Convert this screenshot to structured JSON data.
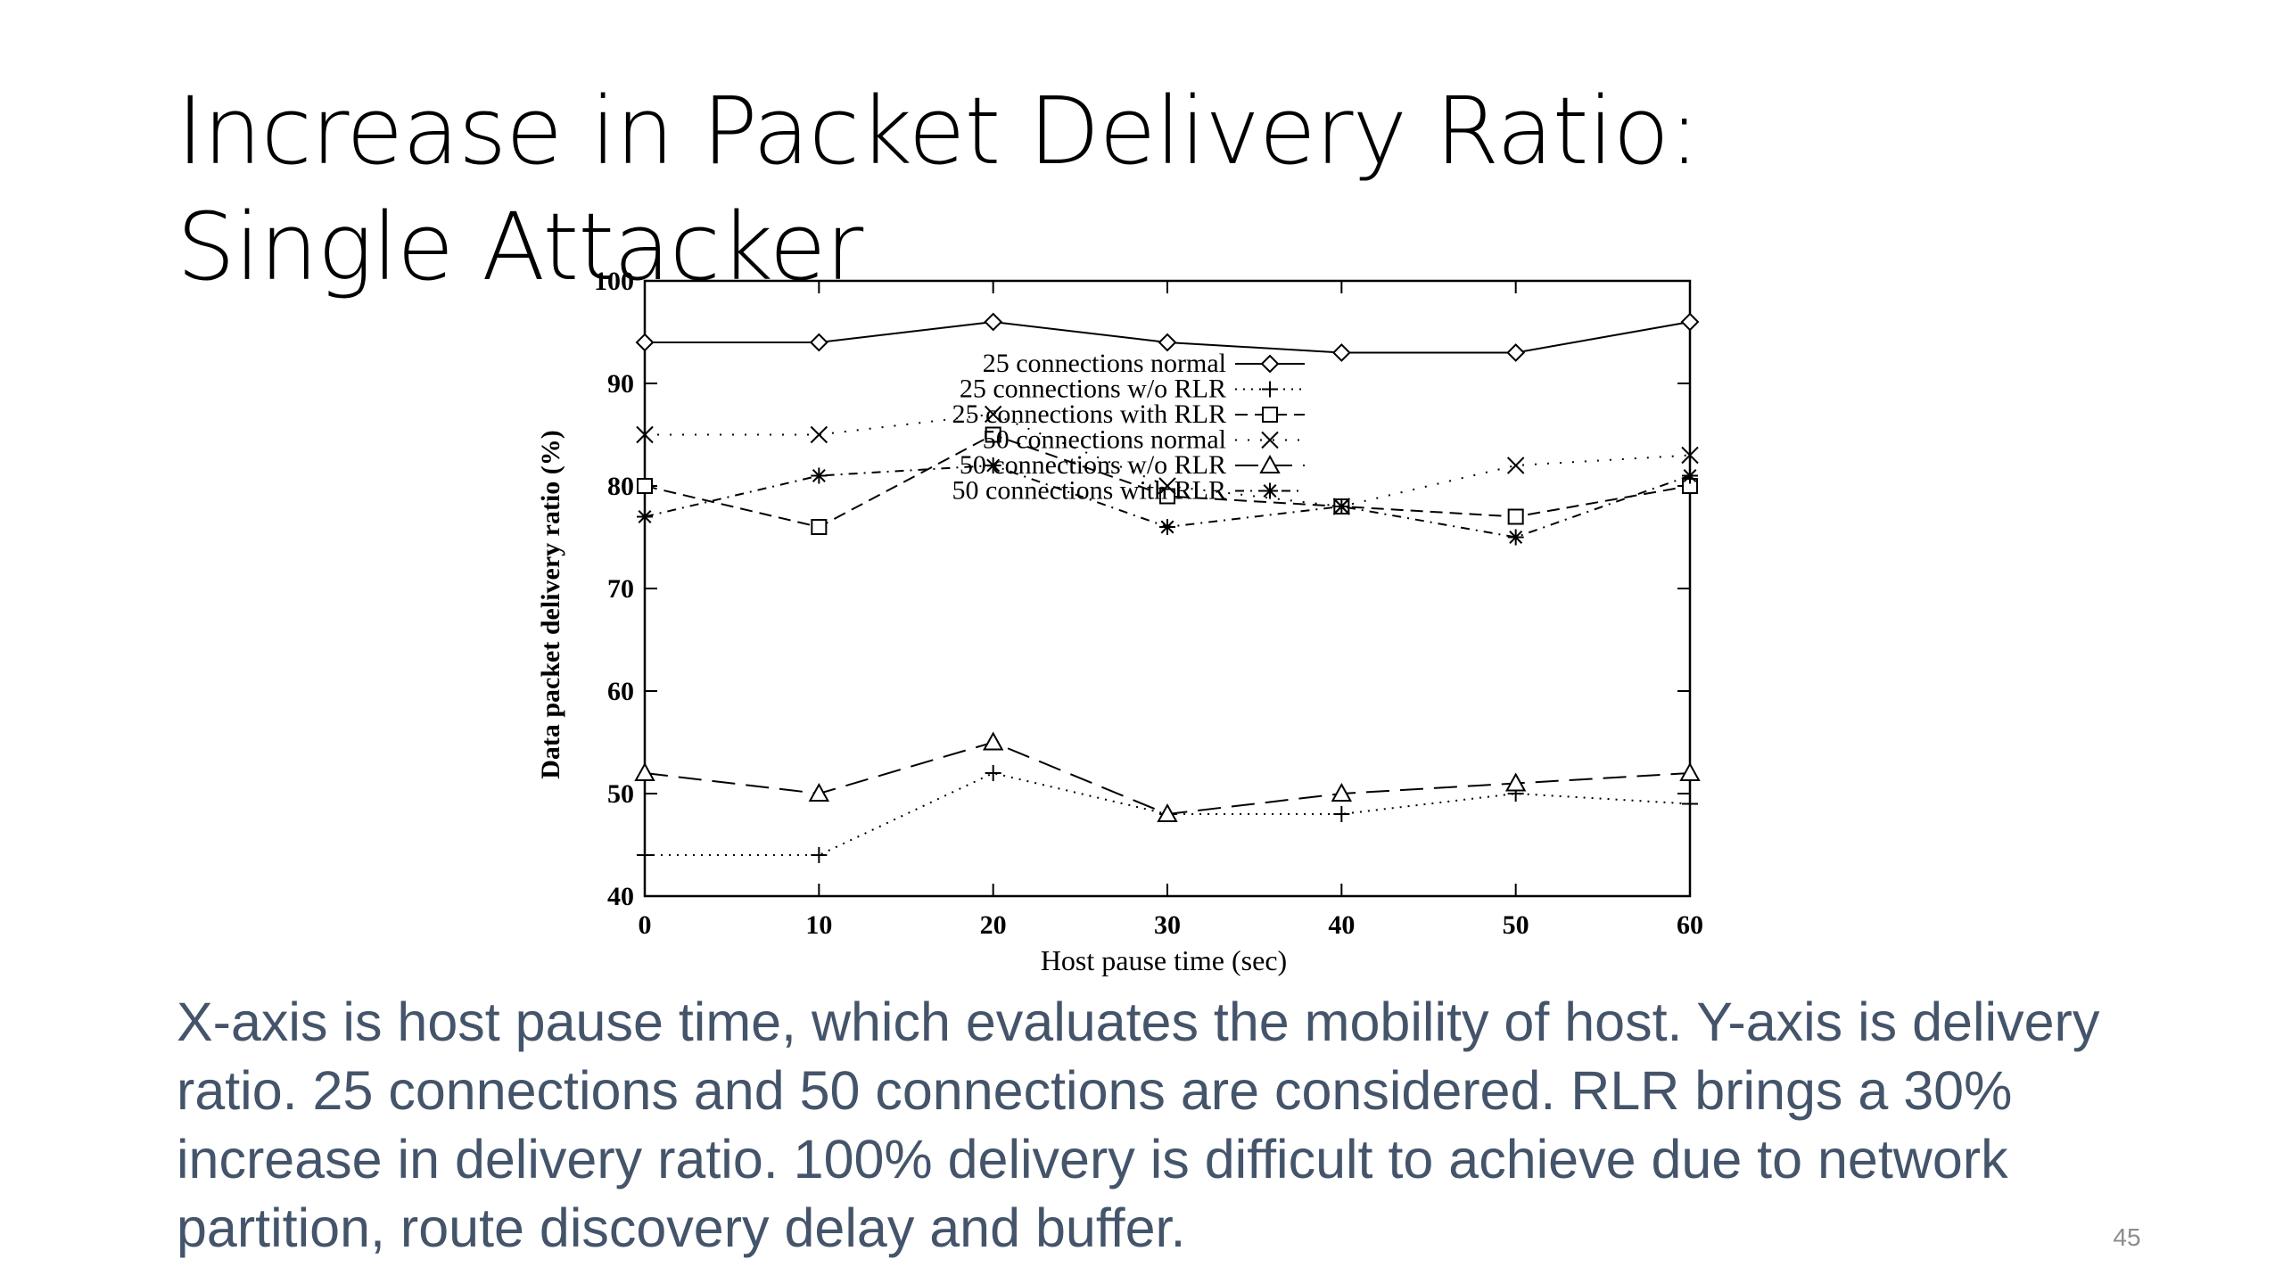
{
  "slide": {
    "title": "Increase in Packet Delivery Ratio: Single Attacker",
    "caption": "X-axis is host pause time, which evaluates the mobility of host. Y-axis is delivery ratio. 25 connections and 50 connections are considered. RLR brings a 30% increase in delivery ratio. 100% delivery is difficult to achieve due to network partition, route discovery delay and buffer.",
    "page_number": "45",
    "caption_color": "#44546a"
  },
  "chart_data": {
    "type": "line",
    "title": "",
    "xlabel": "Host pause time (sec)",
    "ylabel": "Data packet delivery ratio (%)",
    "xlim": [
      0,
      60
    ],
    "ylim": [
      40,
      100
    ],
    "x_ticks": [
      0,
      10,
      20,
      30,
      40,
      50,
      60
    ],
    "y_ticks": [
      40,
      50,
      60,
      70,
      80,
      90,
      100
    ],
    "grid": false,
    "legend_position": "center",
    "x": [
      0,
      10,
      20,
      30,
      40,
      50,
      60
    ],
    "series": [
      {
        "name": "25 connections normal",
        "values": [
          94,
          94,
          96,
          94,
          93,
          93,
          96
        ],
        "marker": "diamond",
        "line": "solid"
      },
      {
        "name": "25 connections w/o RLR",
        "values": [
          44,
          44,
          52,
          48,
          48,
          50,
          49
        ],
        "marker": "plus",
        "line": "dotted"
      },
      {
        "name": "25 connections with RLR",
        "values": [
          80,
          76,
          85,
          79,
          78,
          77,
          80
        ],
        "marker": "square",
        "line": "dashed"
      },
      {
        "name": "50 connections normal",
        "values": [
          85,
          85,
          87,
          80,
          78,
          82,
          83
        ],
        "marker": "cross",
        "line": "dotted-sparse"
      },
      {
        "name": "50 connections w/o RLR",
        "values": [
          52,
          50,
          55,
          48,
          50,
          51,
          52
        ],
        "marker": "triangle",
        "line": "long-dash"
      },
      {
        "name": "50 connections with RLR",
        "values": [
          77,
          81,
          82,
          76,
          78,
          75,
          81
        ],
        "marker": "star",
        "line": "dash-dot"
      }
    ]
  }
}
